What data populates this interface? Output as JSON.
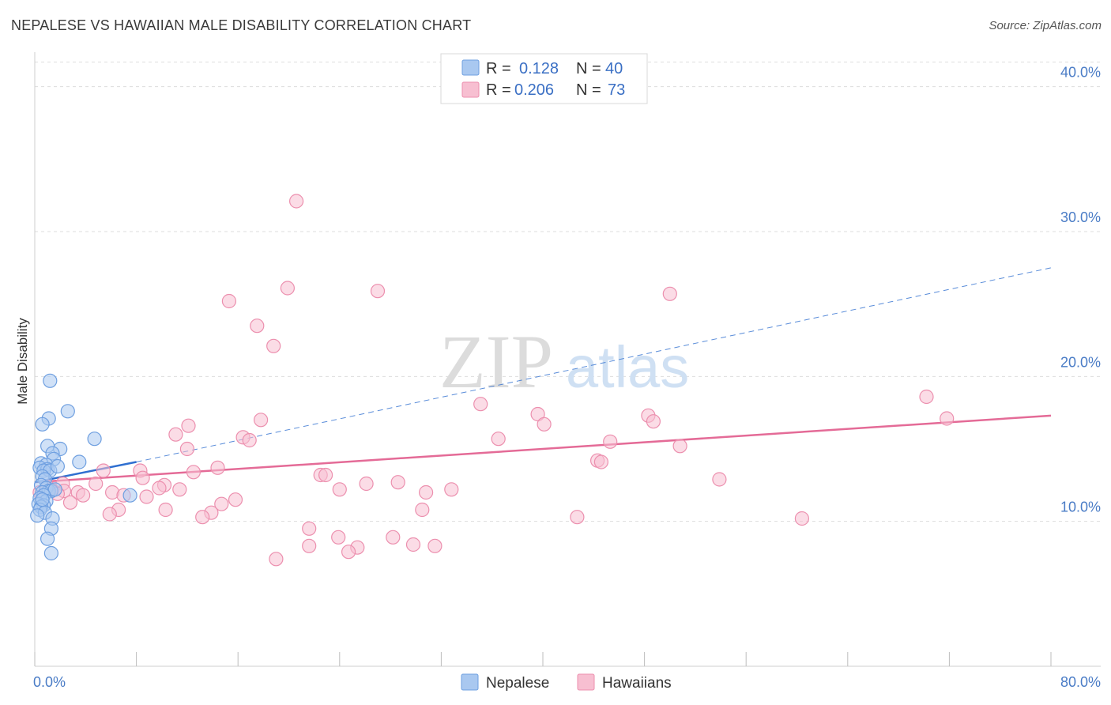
{
  "header": {
    "title": "NEPALESE VS HAWAIIAN MALE DISABILITY CORRELATION CHART",
    "source": "Source: ZipAtlas.com"
  },
  "watermark": {
    "zip": "ZIP",
    "atlas": "atlas"
  },
  "colors": {
    "nepalese_fill": "#a9c8f0",
    "nepalese_stroke": "#6e9fe0",
    "nepalese_line": "#2f6fd0",
    "hawaiian_fill": "#f7bfd1",
    "hawaiian_stroke": "#ec8fae",
    "hawaiian_line": "#e46b97",
    "grid": "#dddddd",
    "tick_label": "#4a7cc6"
  },
  "legend": {
    "rows": [
      {
        "r_label": "R =",
        "r_value": "0.128",
        "n_label": "N =",
        "n_value": "40"
      },
      {
        "r_label": "R =",
        "r_value": "0.206",
        "n_label": "N =",
        "n_value": "73"
      }
    ]
  },
  "bottom_legend": {
    "nepalese": "Nepalese",
    "hawaiians": "Hawaiians"
  },
  "chart_data": {
    "type": "scatter",
    "title": "NEPALESE VS HAWAIIAN MALE DISABILITY CORRELATION CHART",
    "xlabel": "",
    "ylabel": "Male Disability",
    "xlim": [
      0,
      80
    ],
    "ylim": [
      0,
      42
    ],
    "x_tick_labels": [
      "0.0%",
      "80.0%"
    ],
    "y_ticks": [
      10,
      20,
      30,
      40
    ],
    "y_tick_labels": [
      "10.0%",
      "20.0%",
      "30.0%",
      "40.0%"
    ],
    "series": [
      {
        "name": "Nepalese",
        "R": 0.128,
        "N": 40,
        "trend": {
          "x0": 0,
          "y0": 12.7,
          "x1": 8,
          "y1": 14.1,
          "dashed_to_x": 80,
          "dashed_to_y": 27.5
        },
        "points": [
          [
            1.2,
            19.7
          ],
          [
            2.6,
            17.6
          ],
          [
            1.1,
            17.1
          ],
          [
            0.6,
            16.7
          ],
          [
            4.7,
            15.7
          ],
          [
            1.0,
            15.2
          ],
          [
            2.0,
            15.0
          ],
          [
            1.4,
            14.7
          ],
          [
            1.5,
            14.3
          ],
          [
            3.5,
            14.1
          ],
          [
            0.5,
            14.0
          ],
          [
            0.9,
            13.9
          ],
          [
            0.4,
            13.7
          ],
          [
            1.0,
            13.6
          ],
          [
            0.7,
            13.5
          ],
          [
            1.2,
            13.5
          ],
          [
            1.8,
            13.8
          ],
          [
            0.6,
            13.1
          ],
          [
            0.8,
            12.9
          ],
          [
            0.5,
            12.5
          ],
          [
            0.9,
            12.3
          ],
          [
            1.1,
            12.1
          ],
          [
            1.3,
            12.1
          ],
          [
            0.6,
            12.0
          ],
          [
            1.6,
            12.2
          ],
          [
            0.7,
            11.8
          ],
          [
            0.4,
            11.6
          ],
          [
            0.9,
            11.4
          ],
          [
            0.3,
            11.2
          ],
          [
            0.7,
            11.1
          ],
          [
            0.5,
            11.0
          ],
          [
            0.4,
            10.8
          ],
          [
            0.8,
            10.6
          ],
          [
            0.2,
            10.4
          ],
          [
            1.4,
            10.2
          ],
          [
            1.3,
            9.5
          ],
          [
            1.0,
            8.8
          ],
          [
            1.3,
            7.8
          ],
          [
            7.5,
            11.8
          ],
          [
            0.6,
            11.5
          ]
        ]
      },
      {
        "name": "Hawaiians",
        "R": 0.206,
        "N": 73,
        "trend": {
          "x0": 0,
          "y0": 12.7,
          "x1": 80,
          "y1": 17.3
        },
        "points": [
          [
            20.6,
            32.1
          ],
          [
            19.9,
            26.1
          ],
          [
            27.0,
            25.9
          ],
          [
            50.0,
            25.7
          ],
          [
            15.3,
            25.2
          ],
          [
            17.5,
            23.5
          ],
          [
            18.8,
            22.1
          ],
          [
            70.2,
            18.6
          ],
          [
            35.1,
            18.1
          ],
          [
            39.6,
            17.4
          ],
          [
            48.3,
            17.3
          ],
          [
            71.8,
            17.1
          ],
          [
            17.8,
            17.0
          ],
          [
            40.1,
            16.7
          ],
          [
            12.1,
            16.6
          ],
          [
            48.7,
            16.9
          ],
          [
            11.1,
            16.0
          ],
          [
            16.4,
            15.8
          ],
          [
            16.9,
            15.6
          ],
          [
            36.5,
            15.7
          ],
          [
            45.3,
            15.5
          ],
          [
            12.0,
            15.0
          ],
          [
            50.8,
            15.2
          ],
          [
            44.3,
            14.2
          ],
          [
            44.6,
            14.1
          ],
          [
            14.4,
            13.7
          ],
          [
            5.4,
            13.5
          ],
          [
            8.3,
            13.5
          ],
          [
            12.5,
            13.4
          ],
          [
            22.5,
            13.2
          ],
          [
            22.9,
            13.2
          ],
          [
            8.5,
            13.0
          ],
          [
            53.9,
            12.9
          ],
          [
            28.6,
            12.7
          ],
          [
            26.1,
            12.6
          ],
          [
            4.8,
            12.6
          ],
          [
            10.2,
            12.5
          ],
          [
            24.0,
            12.2
          ],
          [
            32.8,
            12.2
          ],
          [
            2.2,
            12.6
          ],
          [
            9.8,
            12.3
          ],
          [
            1.3,
            12.2
          ],
          [
            2.3,
            12.1
          ],
          [
            3.4,
            12.0
          ],
          [
            6.1,
            12.0
          ],
          [
            30.8,
            12.0
          ],
          [
            1.8,
            11.9
          ],
          [
            3.8,
            11.8
          ],
          [
            7.0,
            11.8
          ],
          [
            8.8,
            11.7
          ],
          [
            15.8,
            11.5
          ],
          [
            2.8,
            11.3
          ],
          [
            14.7,
            11.2
          ],
          [
            6.6,
            10.8
          ],
          [
            10.3,
            10.8
          ],
          [
            30.5,
            10.8
          ],
          [
            13.9,
            10.6
          ],
          [
            5.9,
            10.5
          ],
          [
            13.2,
            10.3
          ],
          [
            42.7,
            10.3
          ],
          [
            60.4,
            10.2
          ],
          [
            21.6,
            9.5
          ],
          [
            28.2,
            8.9
          ],
          [
            23.9,
            8.9
          ],
          [
            29.8,
            8.4
          ],
          [
            31.5,
            8.3
          ],
          [
            21.6,
            8.3
          ],
          [
            25.4,
            8.2
          ],
          [
            24.7,
            7.9
          ],
          [
            19.0,
            7.4
          ],
          [
            0.4,
            12.0
          ],
          [
            1.0,
            12.4
          ],
          [
            11.4,
            12.2
          ]
        ]
      }
    ]
  }
}
